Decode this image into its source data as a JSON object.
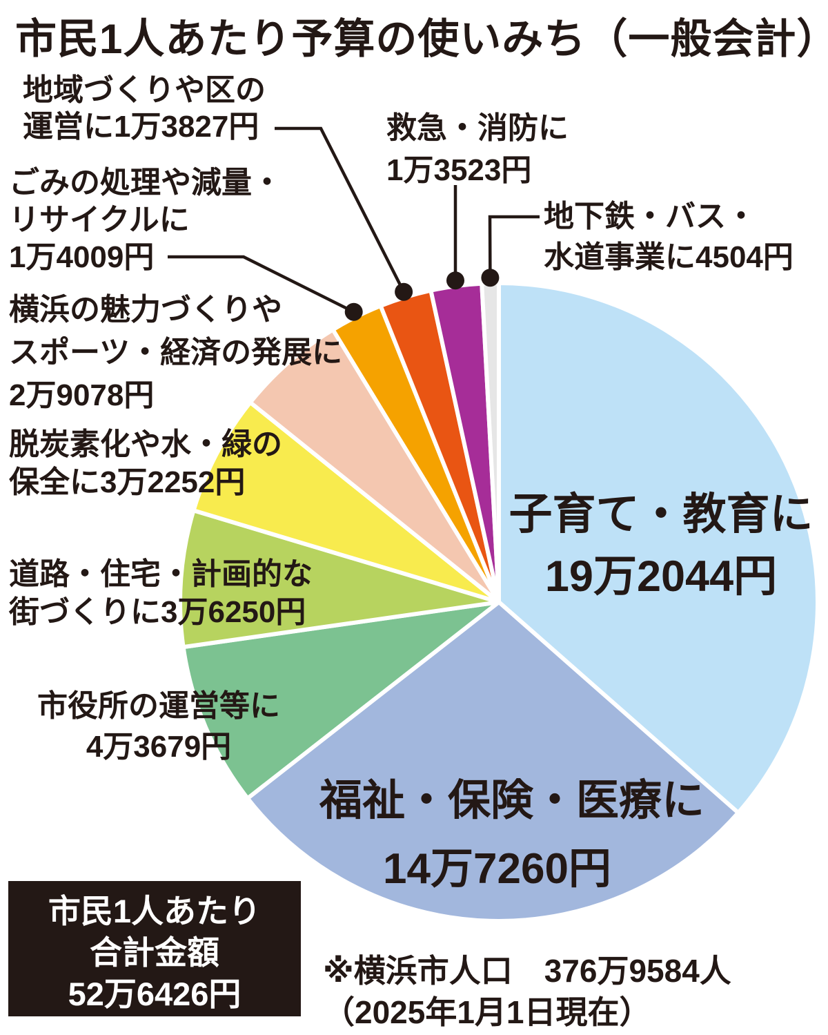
{
  "title": "市民1人あたり予算の使いみち（一般会計）",
  "chart_data": {
    "type": "pie",
    "title": "市民1人あたり予算の使いみち（一般会計）",
    "unit": "円（市民1人あたり）",
    "total_label": "市民1人あたり合計金額",
    "total_value": 526426,
    "total_display": "52万6426円",
    "start_angle_deg": 0,
    "direction": "clockwise",
    "legend_position": "labels-around-pie",
    "slices": [
      {
        "label": "子育て・教育",
        "display": "子育て・教育に19万2044円",
        "value": 192044,
        "color": "#bee1f7"
      },
      {
        "label": "福祉・保険・医療",
        "display": "福祉・保険・医療に14万7260円",
        "value": 147260,
        "color": "#a2b7dd"
      },
      {
        "label": "市役所の運営等",
        "display": "市役所の運営等に4万3679円",
        "value": 43679,
        "color": "#7cc291"
      },
      {
        "label": "道路・住宅・計画的な街づくり",
        "display": "道路・住宅・計画的な街づくりに3万6250円",
        "value": 36250,
        "color": "#b7d35f"
      },
      {
        "label": "脱炭素化や水・緑の保全",
        "display": "脱炭素化や水・緑の保全に3万2252円",
        "value": 32252,
        "color": "#f8eb4e"
      },
      {
        "label": "横浜の魅力づくりやスポーツ・経済の発展",
        "display": "横浜の魅力づくりやスポーツ・経済の発展に2万9078円",
        "value": 29078,
        "color": "#f4c7b0"
      },
      {
        "label": "ごみの処理や減量・リサイクル",
        "display": "ごみの処理や減量・リサイクルに1万4009円",
        "value": 14009,
        "color": "#f5a200"
      },
      {
        "label": "地域づくりや区の運営",
        "display": "地域づくりや区の運営に1万3827円",
        "value": 13827,
        "color": "#e95513"
      },
      {
        "label": "救急・消防",
        "display": "救急・消防に1万3523円",
        "value": 13523,
        "color": "#a62d98"
      },
      {
        "label": "地下鉄・バス・水道事業",
        "display": "地下鉄・バス・水道事業に4504円",
        "value": 4504,
        "color": "#e6e6e6"
      }
    ]
  },
  "labels": {
    "chiiki": {
      "lines": [
        "地域づくりや区の",
        "運営に1万3827円"
      ]
    },
    "kyukyu": {
      "lines": [
        "救急・消防に",
        "1万3523円"
      ]
    },
    "chikatetsu": {
      "lines": [
        "地下鉄・バス・",
        "水道事業に4504円"
      ]
    },
    "gomi": {
      "lines": [
        "ごみの処理や減量・",
        "リサイクルに",
        "1万4009円"
      ]
    },
    "miryoku": {
      "lines": [
        "横浜の魅力づくりや",
        "スポーツ・経済の発展に",
        "2万9078円"
      ]
    },
    "datsutanso": {
      "lines": [
        "脱炭素化や水・緑の",
        "保全に3万2252円"
      ]
    },
    "doro": {
      "lines": [
        "道路・住宅・計画的な",
        "街づくりに3万6250円"
      ]
    },
    "shiyakusho": {
      "lines": [
        "市役所の運営等に",
        "4万3679円"
      ]
    },
    "kosodate": {
      "lines": [
        "子育て・教育に",
        "19万2044円"
      ]
    },
    "fukushi": {
      "lines": [
        "福祉・保険・医療に",
        "14万7260円"
      ]
    }
  },
  "total_box": {
    "lines": [
      "市民1人あたり",
      "合計金額",
      "52万6426円"
    ]
  },
  "note": {
    "lines": [
      "※横浜市人口　376万9584人",
      "（2025年1月1日現在）"
    ]
  },
  "colors": {
    "text": "#231815",
    "leader": "#231815",
    "slice_gap": "#ffffff",
    "box_bg": "#231815",
    "box_text": "#ffffff"
  }
}
